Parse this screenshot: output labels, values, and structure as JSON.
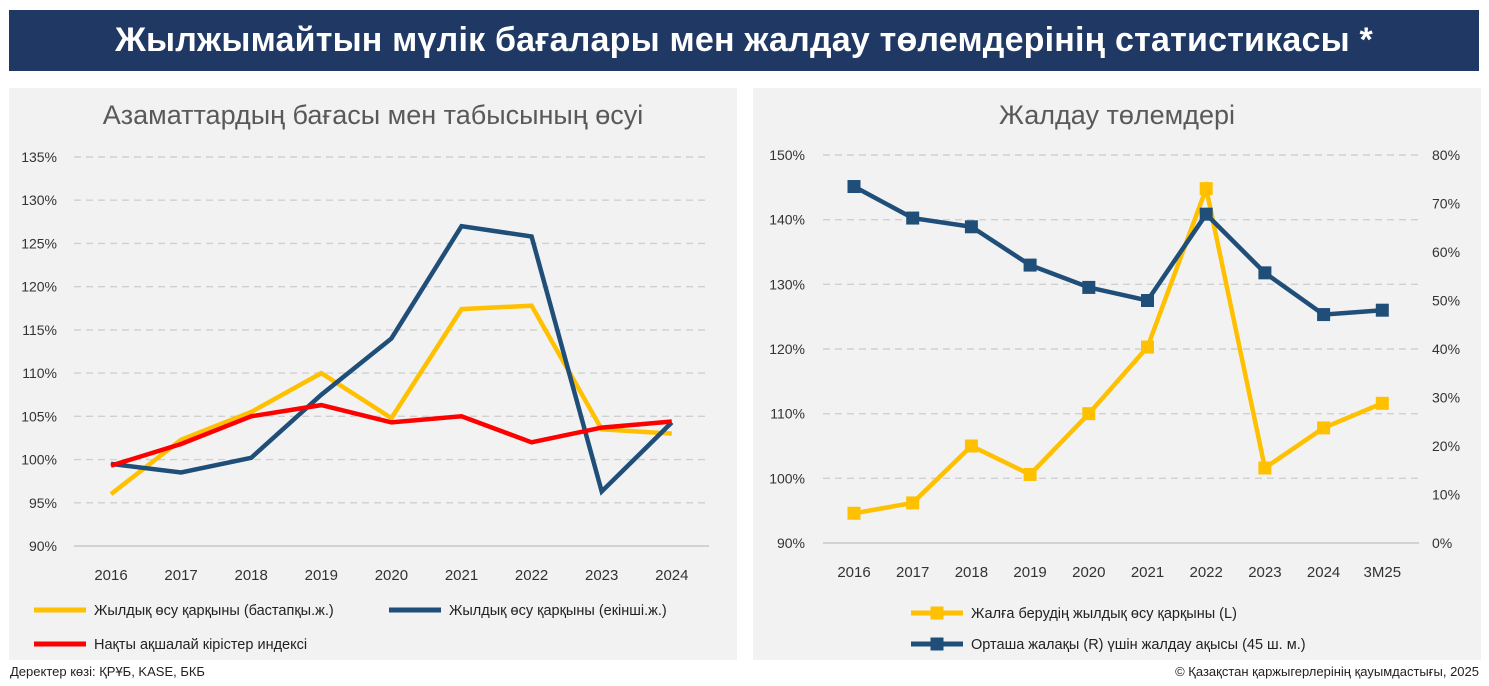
{
  "header": {
    "title": "Жылжымайтын мүлік бағалары мен жалдау төлемдерінің статистикасы *"
  },
  "footer": {
    "source": "Деректер көзі: ҚРҰБ, KASE, БКБ",
    "copyright": "© Қазақстан қаржыгерлерінің қауымдастығы, 2025"
  },
  "chart_data": [
    {
      "type": "line",
      "title": "Азаматтардың бағасы мен табысының өсуі",
      "categories": [
        "2016",
        "2017",
        "2018",
        "2019",
        "2020",
        "2021",
        "2022",
        "2023",
        "2024"
      ],
      "y_ticks": [
        "90%",
        "95%",
        "100%",
        "105%",
        "110%",
        "115%",
        "120%",
        "125%",
        "130%",
        "135%"
      ],
      "ylim": [
        90,
        135
      ],
      "grid": true,
      "legend_position": "bottom",
      "series": [
        {
          "name": "Жылдық өсу қарқыны (бастапқы.ж.)",
          "color": "#ffc000",
          "values": [
            96.0,
            102.3,
            105.5,
            110.0,
            104.8,
            117.4,
            117.8,
            103.5,
            103.0
          ]
        },
        {
          "name": "Жылдық өсу қарқыны (екінші.ж.)",
          "color": "#1f4e79",
          "values": [
            99.5,
            98.5,
            100.2,
            107.5,
            114.0,
            127.0,
            125.8,
            96.3,
            104.3
          ]
        },
        {
          "name": "Нақты ақшалай кірістер индексі",
          "color": "#ff0000",
          "values": [
            99.3,
            101.8,
            105.0,
            106.3,
            104.3,
            105.0,
            102.0,
            103.7,
            104.4
          ]
        }
      ]
    },
    {
      "type": "line",
      "title": "Жалдау төлемдері",
      "categories": [
        "2016",
        "2017",
        "2018",
        "2019",
        "2020",
        "2021",
        "2022",
        "2023",
        "2024",
        "3M25"
      ],
      "y_left_ticks": [
        "90%",
        "100%",
        "110%",
        "120%",
        "130%",
        "140%",
        "150%"
      ],
      "y_right_ticks": [
        "0%",
        "10%",
        "20%",
        "30%",
        "40%",
        "50%",
        "60%",
        "70%",
        "80%"
      ],
      "ylim_left": [
        90,
        150
      ],
      "ylim_right": [
        0,
        80
      ],
      "grid": true,
      "legend_position": "bottom",
      "series": [
        {
          "name": "Жалға берудің жылдық өсу қарқыны (L)",
          "axis": "left",
          "color": "#ffc000",
          "values": [
            94.6,
            96.2,
            105.0,
            100.6,
            110.0,
            120.3,
            144.8,
            101.6,
            107.8,
            111.6
          ]
        },
        {
          "name": "Орташа жалақы (R) үшін жалдау ақысы (45 ш. м.)",
          "axis": "right",
          "color": "#1f4e79",
          "values": [
            73.5,
            67.0,
            65.2,
            57.3,
            52.7,
            50.0,
            67.8,
            55.7,
            47.1,
            48.0
          ]
        }
      ]
    }
  ]
}
